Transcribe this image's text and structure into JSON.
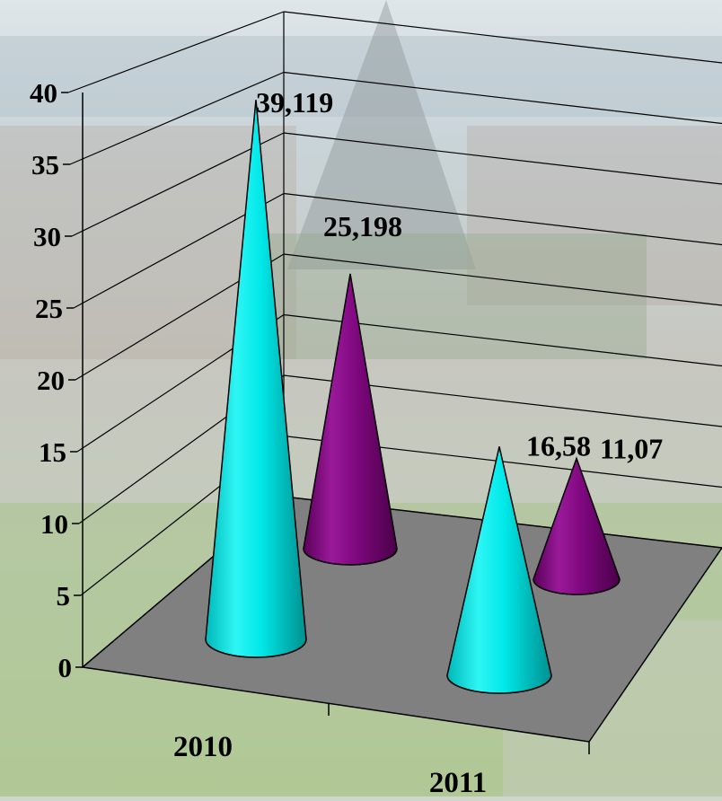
{
  "chart_data": {
    "type": "bar",
    "style": "3d-cone",
    "title": "",
    "xlabel": "",
    "ylabel": "",
    "categories": [
      "2010",
      "2011"
    ],
    "series": [
      {
        "values": [
          39.119,
          16.58
        ],
        "labels": [
          "39,119",
          "16,58"
        ],
        "color": "#00e5e5"
      },
      {
        "values": [
          25.198,
          11.07
        ],
        "labels": [
          "25,198",
          "11,07"
        ],
        "color": "#7a0a7a"
      }
    ],
    "ylim": [
      0,
      40
    ],
    "yticks": [
      "0",
      "5",
      "10",
      "15",
      "20",
      "25",
      "30",
      "35",
      "40"
    ],
    "grid": true,
    "floor_color": "#808080",
    "legend": "none"
  }
}
